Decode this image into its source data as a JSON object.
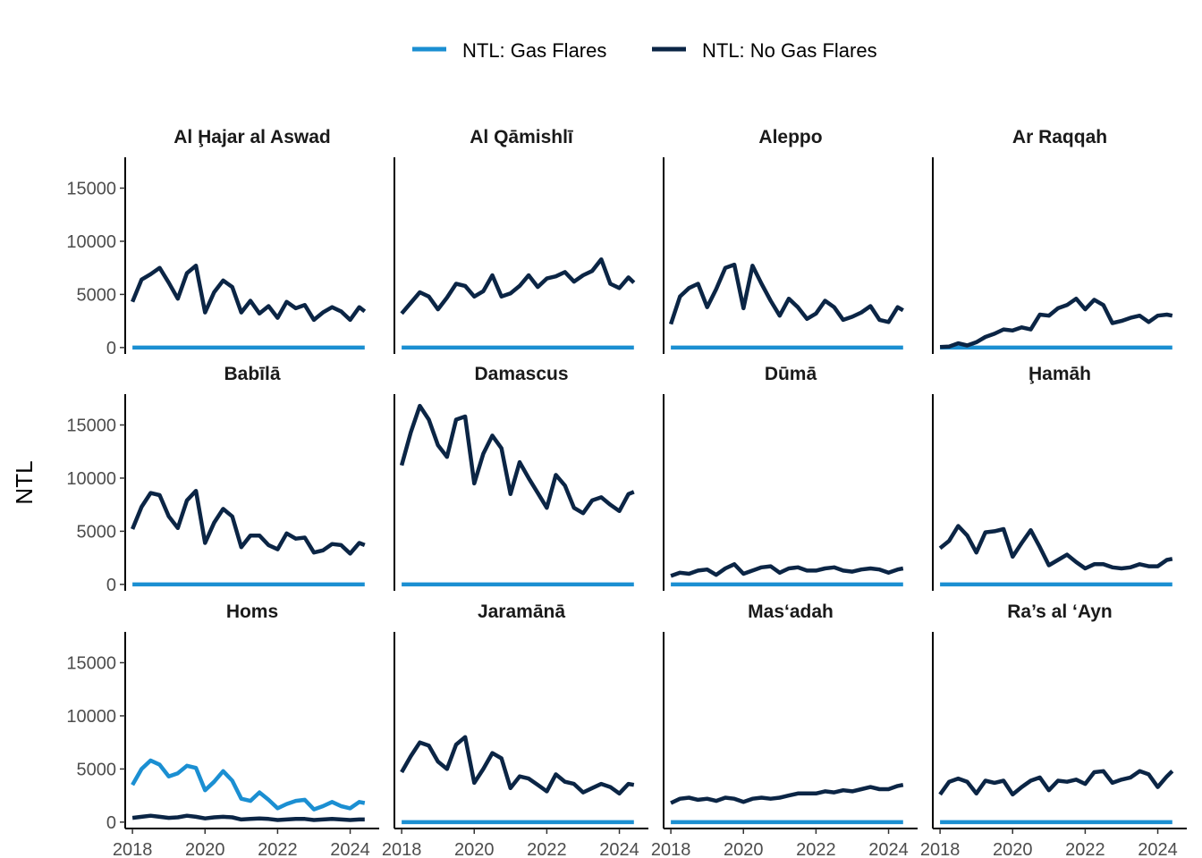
{
  "chart_data": {
    "type": "line",
    "ylabel": "NTL",
    "xlabel": "",
    "legend_position": "top",
    "grid": false,
    "facet_layout": {
      "rows": 3,
      "cols": 4
    },
    "xlim": [
      2017.8,
      2024.8
    ],
    "ylim": [
      -600,
      17900
    ],
    "x_ticks": [
      2018,
      2020,
      2022,
      2024
    ],
    "x_tick_labels": [
      "2018",
      "2020",
      "2022",
      "2024"
    ],
    "y_ticks": [
      0,
      5000,
      10000,
      15000
    ],
    "y_tick_labels": [
      "0",
      "5000",
      "10000",
      "15000"
    ],
    "series_meta": [
      {
        "name": "NTL: Gas Flares",
        "color": "#1b8fd2"
      },
      {
        "name": "NTL: No Gas Flares",
        "color": "#0b2545"
      }
    ],
    "x": [
      2018.0,
      2018.25,
      2018.5,
      2018.75,
      2019.0,
      2019.25,
      2019.5,
      2019.75,
      2020.0,
      2020.25,
      2020.5,
      2020.75,
      2021.0,
      2021.25,
      2021.5,
      2021.75,
      2022.0,
      2022.25,
      2022.5,
      2022.75,
      2023.0,
      2023.25,
      2023.5,
      2023.75,
      2024.0,
      2024.25,
      2024.4
    ],
    "facets": [
      {
        "title": "Al Ḩajar al Aswad",
        "gas": [
          0,
          0,
          0,
          0,
          0,
          0,
          0,
          0,
          0,
          0,
          0,
          0,
          0,
          0,
          0,
          0,
          0,
          0,
          0,
          0,
          0,
          0,
          0,
          0,
          0,
          0,
          0
        ],
        "nogas": [
          4300,
          6400,
          6900,
          7500,
          6100,
          4600,
          7000,
          7700,
          3300,
          5200,
          6300,
          5700,
          3300,
          4400,
          3200,
          3900,
          2800,
          4300,
          3700,
          4000,
          2600,
          3300,
          3800,
          3400,
          2600,
          3800,
          3400
        ]
      },
      {
        "title": "Al Qāmishlī",
        "gas": [
          0,
          0,
          0,
          0,
          0,
          0,
          0,
          0,
          0,
          0,
          0,
          0,
          0,
          0,
          0,
          0,
          0,
          0,
          0,
          0,
          0,
          0,
          0,
          0,
          0,
          0,
          0
        ],
        "nogas": [
          3200,
          4200,
          5200,
          4800,
          3600,
          4700,
          6000,
          5800,
          4800,
          5300,
          6800,
          4800,
          5100,
          5800,
          6800,
          5700,
          6500,
          6700,
          7100,
          6200,
          6800,
          7200,
          8300,
          6000,
          5600,
          6600,
          6100
        ]
      },
      {
        "title": "Aleppo",
        "gas": [
          0,
          0,
          0,
          0,
          0,
          0,
          0,
          0,
          0,
          0,
          0,
          0,
          0,
          0,
          0,
          0,
          0,
          0,
          0,
          0,
          0,
          0,
          0,
          0,
          0,
          0,
          0
        ],
        "nogas": [
          2200,
          4800,
          5600,
          6000,
          3800,
          5500,
          7500,
          7800,
          3700,
          7700,
          6000,
          4400,
          3000,
          4600,
          3800,
          2700,
          3200,
          4400,
          3800,
          2600,
          2900,
          3300,
          3900,
          2600,
          2400,
          3800,
          3500
        ]
      },
      {
        "title": "Ar Raqqah",
        "gas": [
          0,
          0,
          0,
          0,
          0,
          0,
          0,
          0,
          0,
          0,
          0,
          0,
          0,
          0,
          0,
          0,
          0,
          0,
          0,
          0,
          0,
          0,
          0,
          0,
          0,
          0,
          0
        ],
        "nogas": [
          50,
          100,
          400,
          200,
          500,
          1000,
          1300,
          1700,
          1600,
          1900,
          1700,
          3100,
          3000,
          3700,
          4000,
          4600,
          3600,
          4500,
          4000,
          2300,
          2500,
          2800,
          3000,
          2400,
          3000,
          3100,
          3000
        ]
      },
      {
        "title": "Babīlā",
        "gas": [
          0,
          0,
          0,
          0,
          0,
          0,
          0,
          0,
          0,
          0,
          0,
          0,
          0,
          0,
          0,
          0,
          0,
          0,
          0,
          0,
          0,
          0,
          0,
          0,
          0,
          0,
          0
        ],
        "nogas": [
          5200,
          7300,
          8600,
          8400,
          6400,
          5300,
          7900,
          8800,
          3900,
          5800,
          7100,
          6400,
          3500,
          4600,
          4600,
          3700,
          3300,
          4800,
          4300,
          4400,
          3000,
          3200,
          3800,
          3700,
          2900,
          3900,
          3700
        ]
      },
      {
        "title": "Damascus",
        "gas": [
          0,
          0,
          0,
          0,
          0,
          0,
          0,
          0,
          0,
          0,
          0,
          0,
          0,
          0,
          0,
          0,
          0,
          0,
          0,
          0,
          0,
          0,
          0,
          0,
          0,
          0,
          0
        ],
        "nogas": [
          11200,
          14300,
          16800,
          15500,
          13100,
          12000,
          15500,
          15800,
          9500,
          12300,
          14000,
          12800,
          8500,
          11500,
          10000,
          8600,
          7200,
          10300,
          9300,
          7200,
          6700,
          7900,
          8200,
          7500,
          6900,
          8500,
          8700
        ]
      },
      {
        "title": "Dūmā",
        "gas": [
          0,
          0,
          0,
          0,
          0,
          0,
          0,
          0,
          0,
          0,
          0,
          0,
          0,
          0,
          0,
          0,
          0,
          0,
          0,
          0,
          0,
          0,
          0,
          0,
          0,
          0,
          0
        ],
        "nogas": [
          800,
          1100,
          1000,
          1300,
          1400,
          900,
          1500,
          1900,
          1000,
          1300,
          1600,
          1700,
          1100,
          1500,
          1600,
          1300,
          1300,
          1500,
          1600,
          1300,
          1200,
          1400,
          1500,
          1400,
          1100,
          1400,
          1500
        ]
      },
      {
        "title": "Ḩamāh",
        "gas": [
          0,
          0,
          0,
          0,
          0,
          0,
          0,
          0,
          0,
          0,
          0,
          0,
          0,
          0,
          0,
          0,
          0,
          0,
          0,
          0,
          0,
          0,
          0,
          0,
          0,
          0,
          0
        ],
        "nogas": [
          3400,
          4100,
          5500,
          4600,
          3000,
          4900,
          5000,
          5200,
          2600,
          3900,
          5100,
          3500,
          1800,
          2300,
          2800,
          2100,
          1500,
          1900,
          1900,
          1600,
          1500,
          1600,
          1900,
          1700,
          1700,
          2300,
          2400
        ]
      },
      {
        "title": "Homs",
        "gas": [
          3500,
          5000,
          5800,
          5400,
          4300,
          4600,
          5300,
          5100,
          3000,
          3800,
          4800,
          3900,
          2200,
          2000,
          2800,
          2100,
          1300,
          1700,
          2000,
          2100,
          1200,
          1500,
          1900,
          1500,
          1300,
          1900,
          1800
        ],
        "nogas": [
          400,
          500,
          600,
          500,
          400,
          450,
          600,
          500,
          350,
          450,
          500,
          450,
          250,
          300,
          350,
          300,
          200,
          250,
          300,
          300,
          200,
          250,
          300,
          250,
          200,
          250,
          250
        ]
      },
      {
        "title": "Jaramānā",
        "gas": [
          0,
          0,
          0,
          0,
          0,
          0,
          0,
          0,
          0,
          0,
          0,
          0,
          0,
          0,
          0,
          0,
          0,
          0,
          0,
          0,
          0,
          0,
          0,
          0,
          0,
          0,
          0
        ],
        "nogas": [
          4700,
          6200,
          7500,
          7200,
          5700,
          5000,
          7300,
          8000,
          3700,
          5000,
          6500,
          6000,
          3200,
          4300,
          4100,
          3500,
          2900,
          4500,
          3800,
          3600,
          2800,
          3200,
          3600,
          3300,
          2700,
          3600,
          3500
        ]
      },
      {
        "title": "Mas‘adah",
        "gas": [
          0,
          0,
          0,
          0,
          0,
          0,
          0,
          0,
          0,
          0,
          0,
          0,
          0,
          0,
          0,
          0,
          0,
          0,
          0,
          0,
          0,
          0,
          0,
          0,
          0,
          0,
          0
        ],
        "nogas": [
          1800,
          2200,
          2300,
          2100,
          2200,
          2000,
          2300,
          2200,
          1900,
          2200,
          2300,
          2200,
          2300,
          2500,
          2700,
          2700,
          2700,
          2900,
          2800,
          3000,
          2900,
          3100,
          3300,
          3100,
          3100,
          3400,
          3500
        ]
      },
      {
        "title": "Ra’s al ‘Ayn",
        "gas": [
          0,
          0,
          0,
          0,
          0,
          0,
          0,
          0,
          0,
          0,
          0,
          0,
          0,
          0,
          0,
          0,
          0,
          0,
          0,
          0,
          0,
          0,
          0,
          0,
          0,
          0,
          0
        ],
        "nogas": [
          2600,
          3800,
          4100,
          3800,
          2700,
          3900,
          3700,
          3900,
          2600,
          3300,
          3900,
          4200,
          3000,
          3900,
          3800,
          4000,
          3600,
          4700,
          4800,
          3700,
          4000,
          4200,
          4800,
          4500,
          3300,
          4300,
          4800
        ]
      }
    ]
  }
}
